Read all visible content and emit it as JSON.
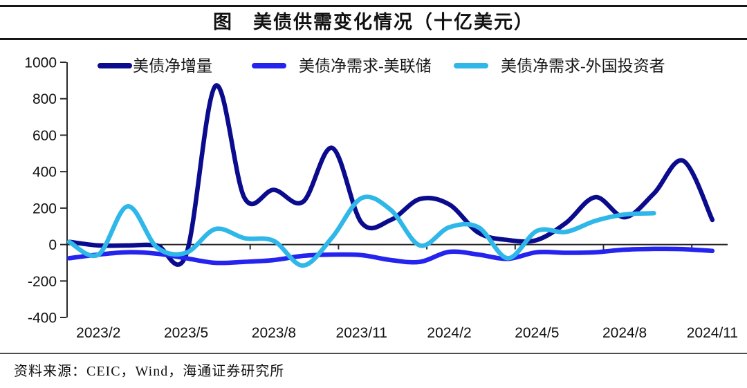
{
  "header": {
    "title": "图　美债供需变化情况（十亿美元）"
  },
  "footer": {
    "source": "资料来源：CEIC，Wind，海通证券研究所"
  },
  "colors": {
    "net_issuance": "#0B0B8E",
    "fed_demand": "#2424EE",
    "foreign_demand": "#2FB7E9",
    "axis": "#2a2a2a"
  },
  "chart_data": {
    "type": "line",
    "title": "图 美债供需变化情况（十亿美元）",
    "xlabel": "",
    "ylabel": "",
    "unit": "十亿美元",
    "ylim": [
      -400,
      1000
    ],
    "ytick_step": 200,
    "ytick_labels": [
      "1000",
      "800",
      "600",
      "400",
      "200",
      "0",
      "-200",
      "-400"
    ],
    "grid": false,
    "legend_position": "top",
    "categories": [
      "2023/1",
      "2023/2",
      "2023/3",
      "2023/4",
      "2023/5",
      "2023/6",
      "2023/7",
      "2023/8",
      "2023/9",
      "2023/10",
      "2023/11",
      "2023/12",
      "2024/1",
      "2024/2",
      "2024/3",
      "2024/4",
      "2024/5",
      "2024/6",
      "2024/7",
      "2024/8",
      "2024/9",
      "2024/10",
      "2024/11"
    ],
    "x_tick_labels": [
      "2023/2",
      "2023/5",
      "2023/8",
      "2023/11",
      "2024/2",
      "2024/5",
      "2024/8",
      "2024/11"
    ],
    "series": [
      {
        "name": "美债净增量",
        "color": "#0B0B8E",
        "values": [
          15,
          -5,
          -5,
          -5,
          -55,
          870,
          255,
          300,
          235,
          530,
          120,
          135,
          250,
          220,
          65,
          25,
          25,
          120,
          260,
          150,
          280,
          460,
          135
        ]
      },
      {
        "name": "美债净需求-美联储",
        "color": "#2424EE",
        "values": [
          -75,
          -55,
          -42,
          -50,
          -75,
          -100,
          -95,
          -85,
          -62,
          -55,
          -58,
          -85,
          -95,
          -40,
          -55,
          -78,
          -42,
          -45,
          -42,
          -28,
          -24,
          -25,
          -35
        ]
      },
      {
        "name": "美债净需求-外国投资者",
        "color": "#2FB7E9",
        "values": [
          15,
          -55,
          210,
          -15,
          -45,
          85,
          35,
          20,
          -115,
          40,
          255,
          190,
          -5,
          95,
          95,
          -75,
          75,
          70,
          130,
          165,
          172
        ]
      }
    ]
  }
}
